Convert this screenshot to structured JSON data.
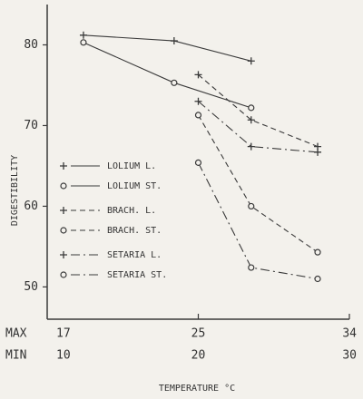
{
  "chart_data": {
    "type": "line",
    "ylabel": "DIGESTIBILITY",
    "xlabel": "TEMPERATURE °C",
    "x_row_labels": [
      "MAX",
      "MIN"
    ],
    "xlim": [
      10,
      30
    ],
    "xticks": [
      10,
      20,
      30
    ],
    "xticks_max": [
      {
        "value": 10,
        "label": "17"
      },
      {
        "value": 20,
        "label": "25"
      },
      {
        "value": 30,
        "label": "34"
      }
    ],
    "ylim": [
      46,
      85
    ],
    "yticks": [
      50,
      60,
      70,
      80
    ],
    "color": "#3a3a3a",
    "legend": "left",
    "series": [
      {
        "name": "LOLIUM L.",
        "marker": "+",
        "dash": "solid",
        "x": [
          12.4,
          18.4,
          23.5
        ],
        "values": [
          81.2,
          80.5,
          78.0
        ]
      },
      {
        "name": "LOLIUM ST.",
        "marker": "o",
        "dash": "solid",
        "x": [
          12.4,
          18.4,
          23.5
        ],
        "values": [
          80.3,
          75.3,
          72.2
        ]
      },
      {
        "name": "BRACH. L.",
        "marker": "+",
        "dash": "dashed",
        "x": [
          20,
          23.5,
          27.9
        ],
        "values": [
          76.3,
          70.7,
          67.4
        ]
      },
      {
        "name": "BRACH. ST.",
        "marker": "o",
        "dash": "dashed",
        "x": [
          20,
          23.5,
          27.9
        ],
        "values": [
          71.3,
          60.0,
          54.3
        ]
      },
      {
        "name": "SETARIA L.",
        "marker": "+",
        "dash": "dashdot",
        "x": [
          20,
          23.5,
          27.9
        ],
        "values": [
          73.0,
          67.4,
          66.7
        ]
      },
      {
        "name": "SETARIA ST.",
        "marker": "o",
        "dash": "dashdot",
        "x": [
          20,
          23.5,
          27.9
        ],
        "values": [
          65.4,
          52.4,
          51.0
        ]
      }
    ]
  }
}
